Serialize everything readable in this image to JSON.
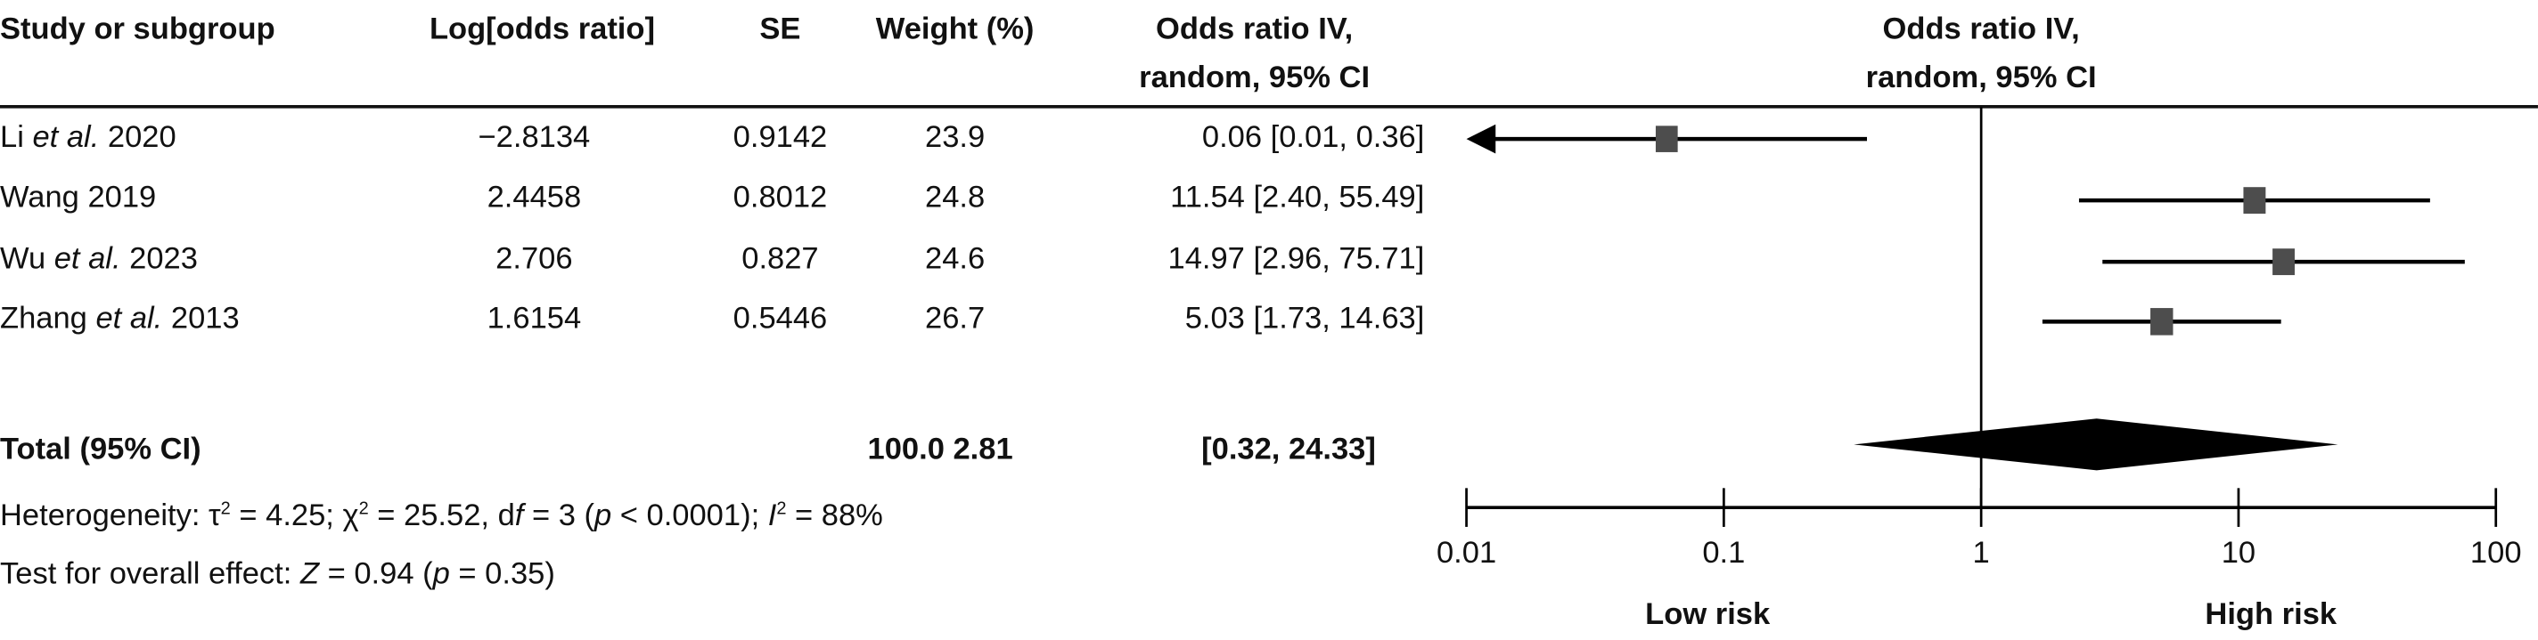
{
  "headers": {
    "study": "Study or subgroup",
    "log_or": "Log[odds ratio]",
    "se": "SE",
    "weight": "Weight (%)",
    "or_line1": "Odds ratio IV,",
    "or_line2": "random, 95% CI",
    "plot_line1": "Odds ratio IV,",
    "plot_line2": "random, 95% CI"
  },
  "studies": [
    {
      "name_pre": "Li ",
      "name_it": "et al.",
      "name_post": " 2020",
      "log_or": "−2.8134",
      "se": "0.9142",
      "weight": "23.9",
      "or_text": "0.06 [0.01, 0.36]"
    },
    {
      "name_pre": "Wang 2019",
      "name_it": "",
      "name_post": "",
      "log_or": "2.4458",
      "se": "0.8012",
      "weight": "24.8",
      "or_text": "11.54 [2.40, 55.49]"
    },
    {
      "name_pre": "Wu ",
      "name_it": "et al.",
      "name_post": " 2023",
      "log_or": "2.706",
      "se": "0.827",
      "weight": "24.6",
      "or_text": "14.97 [2.96, 75.71]"
    },
    {
      "name_pre": "Zhang ",
      "name_it": "et al.",
      "name_post": " 2013",
      "log_or": "1.6154",
      "se": "0.5446",
      "weight": "26.7",
      "or_text": "5.03 [1.73, 14.63]"
    }
  ],
  "total": {
    "label": "Total (95% CI)",
    "weight_or": "100.0 2.81",
    "ci": "[0.32, 24.33]"
  },
  "heterogeneity": [
    {
      "t": "Heterogeneity: τ"
    },
    {
      "t": "2",
      "sup": true
    },
    {
      "t": " = 4.25; χ"
    },
    {
      "t": "2",
      "sup": true
    },
    {
      "t": " = 25.52, d"
    },
    {
      "t": "f",
      "it": true
    },
    {
      "t": " = 3 ("
    },
    {
      "t": "p",
      "it": true
    },
    {
      "t": " < 0.0001); "
    },
    {
      "t": "I",
      "it": true
    },
    {
      "t": "2",
      "sup": true
    },
    {
      "t": " = 88%"
    }
  ],
  "overall_effect": [
    {
      "t": "Test for overall effect: "
    },
    {
      "t": "Z",
      "it": true
    },
    {
      "t": " = 0.94 ("
    },
    {
      "t": "p",
      "it": true
    },
    {
      "t": " = 0.35)"
    }
  ],
  "chart_data": {
    "type": "forest",
    "scale": "log",
    "xlim": [
      0.01,
      100
    ],
    "ticks": [
      0.01,
      0.1,
      1,
      10,
      100
    ],
    "tick_labels": [
      "0.01",
      "0.1",
      "1",
      "10",
      "100"
    ],
    "left_label": "Low risk",
    "right_label": "High risk",
    "null_line": 1,
    "studies": [
      {
        "name": "Li et al. 2020",
        "or": 0.06,
        "lower": 0.01,
        "upper": 0.36,
        "weight": 23.9,
        "lower_truncated": true
      },
      {
        "name": "Wang 2019",
        "or": 11.54,
        "lower": 2.4,
        "upper": 55.49,
        "weight": 24.8
      },
      {
        "name": "Wu et al. 2023",
        "or": 14.97,
        "lower": 2.96,
        "upper": 75.71,
        "weight": 24.6
      },
      {
        "name": "Zhang et al. 2013",
        "or": 5.03,
        "lower": 1.73,
        "upper": 14.63,
        "weight": 26.7
      }
    ],
    "pooled": {
      "or": 2.81,
      "lower": 0.32,
      "upper": 24.33
    },
    "colors": {
      "square": "#4d4d4d",
      "line": "#000000",
      "diamond": "#000000"
    }
  }
}
